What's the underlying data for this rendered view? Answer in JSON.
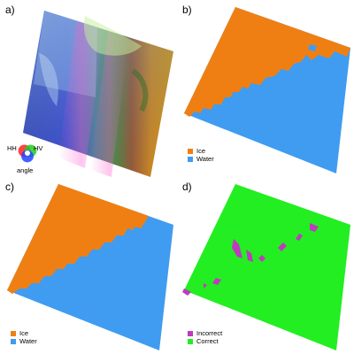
{
  "panels": {
    "a": {
      "label": "a)",
      "wheel": {
        "top_left": "HH",
        "top_right": "HV",
        "bottom": "angle"
      }
    },
    "b": {
      "label": "b)",
      "legend": [
        {
          "label": "Ice",
          "color": "#f07f13"
        },
        {
          "label": "Water",
          "color": "#3f9cf1"
        }
      ]
    },
    "c": {
      "label": "c)",
      "legend": [
        {
          "label": "Ice",
          "color": "#f07f13"
        },
        {
          "label": "Water",
          "color": "#3f9cf1"
        }
      ]
    },
    "d": {
      "label": "d)",
      "legend": [
        {
          "label": "Incorrect",
          "color": "#c03ac0"
        },
        {
          "label": "Correct",
          "color": "#22ee22"
        }
      ]
    }
  }
}
